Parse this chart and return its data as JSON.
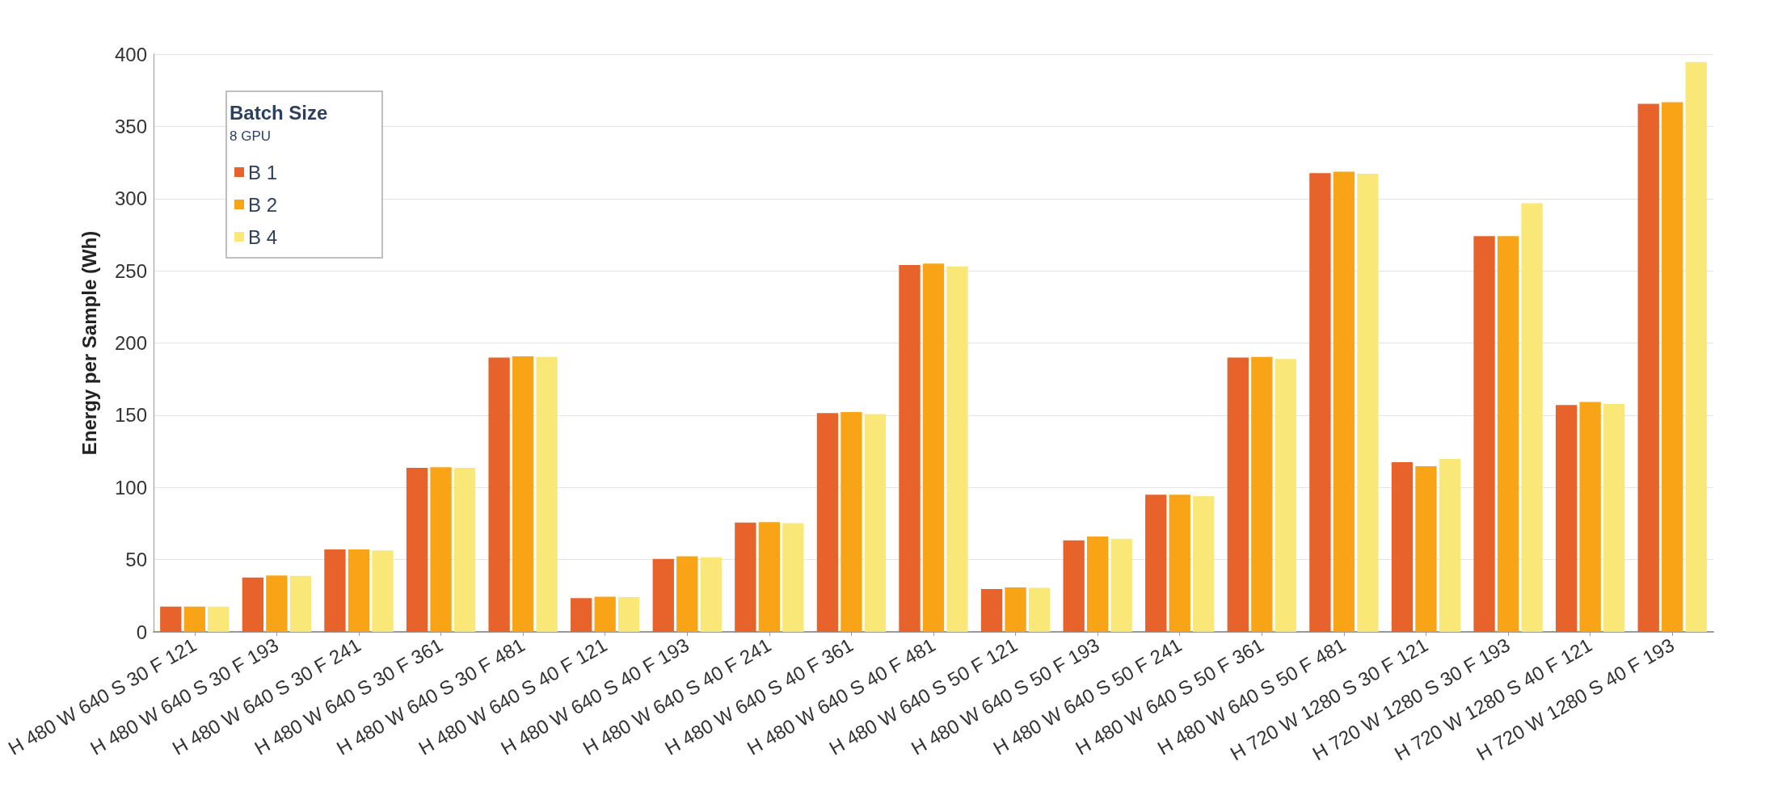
{
  "chart_data": {
    "type": "bar",
    "ylabel": "Energy per Sample (Wh)",
    "legend_title": "Batch Size",
    "annotations": [
      "8 GPU"
    ],
    "categories": [
      "H 480 W 640 S 30 F 121",
      "H 480 W 640 S 30 F 193",
      "H 480 W 640 S 30 F 241",
      "H 480 W 640 S 30 F 361",
      "H 480 W 640 S 30 F 481",
      "H 480 W 640 S 40 F 121",
      "H 480 W 640 S 40 F 193",
      "H 480 W 640 S 40 F 241",
      "H 480 W 640 S 40 F 361",
      "H 480 W 640 S 40 F 481",
      "H 480 W 640 S 50 F 121",
      "H 480 W 640 S 50 F 193",
      "H 480 W 640 S 50 F 241",
      "H 480 W 640 S 50 F 361",
      "H 480 W 640 S 50 F 481",
      "H 720 W 1280 S 30 F 121",
      "H 720 W 1280 S 30 F 193",
      "H 720 W 1280 S 40 F 121",
      "H 720 W 1280 S 40 F 193"
    ],
    "series": [
      {
        "name": "B 1",
        "color": "#e8632b",
        "values": [
          17.5,
          37.6,
          57,
          113.5,
          190,
          23.3,
          50.5,
          75.6,
          151.5,
          254,
          29.7,
          63.4,
          95,
          190,
          317.6,
          117.5,
          274,
          157,
          365.6
        ]
      },
      {
        "name": "B 2",
        "color": "#f8a416",
        "values": [
          17.5,
          39,
          57,
          114,
          190.7,
          24.4,
          52.3,
          76,
          152.2,
          255,
          30.8,
          66,
          95,
          190.3,
          318.6,
          114.7,
          274,
          159.1,
          366.7
        ]
      },
      {
        "name": "B 4",
        "color": "#f9e878",
        "values": [
          17.5,
          38.7,
          56.3,
          113.5,
          190.3,
          24,
          51.6,
          75.2,
          150.8,
          253,
          30.5,
          64.5,
          94,
          189,
          317.2,
          119.7,
          296.8,
          157.7,
          394.6
        ]
      }
    ],
    "ylim": [
      0,
      400
    ],
    "yticks": [
      0,
      50,
      100,
      150,
      200,
      250,
      300,
      350,
      400
    ],
    "grid": "y",
    "legend": "top left"
  }
}
